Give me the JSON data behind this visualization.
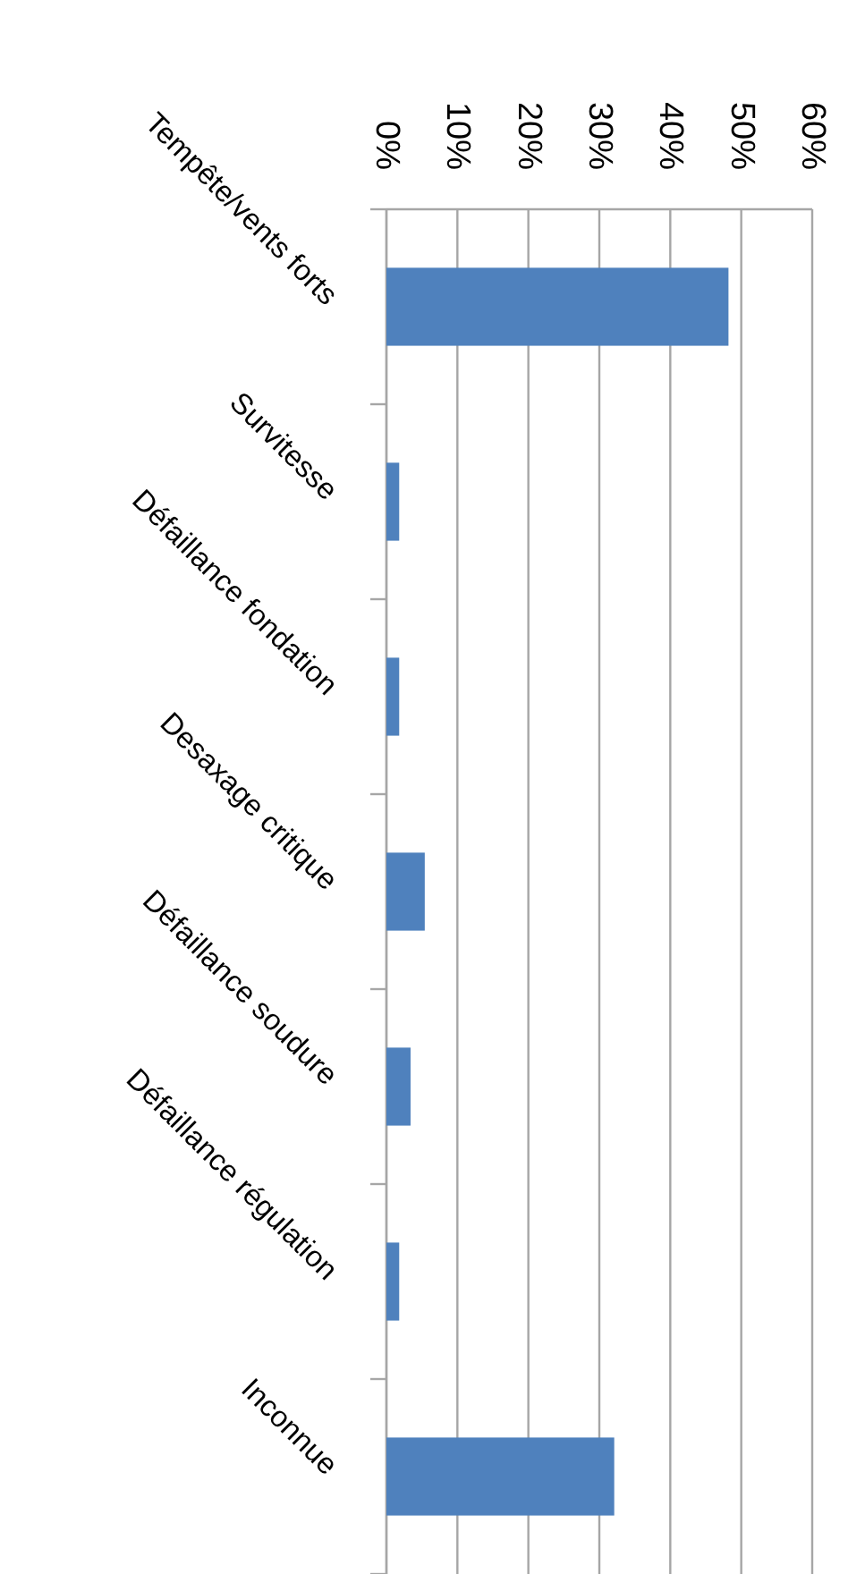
{
  "chart_data": {
    "type": "bar",
    "orientation": "horizontal",
    "categories": [
      "Tempête/vents forts",
      "Survitesse",
      "Défaillance fondation",
      "Desaxage  critique",
      "Défaillance soudure",
      "Défaillance régulation",
      "Inconnue"
    ],
    "values": [
      48.2,
      1.8,
      1.8,
      5.4,
      3.4,
      1.8,
      32.1
    ],
    "color": "#4f81bd",
    "xlim": [
      0,
      60
    ],
    "xticks": [
      {
        "value": 0,
        "label": "0%"
      },
      {
        "value": 10,
        "label": "10%"
      },
      {
        "value": 20,
        "label": "20%"
      },
      {
        "value": 30,
        "label": "30%"
      },
      {
        "value": 40,
        "label": "40%"
      },
      {
        "value": 50,
        "label": "50%"
      },
      {
        "value": 60,
        "label": "60%"
      }
    ],
    "grid": "x"
  }
}
